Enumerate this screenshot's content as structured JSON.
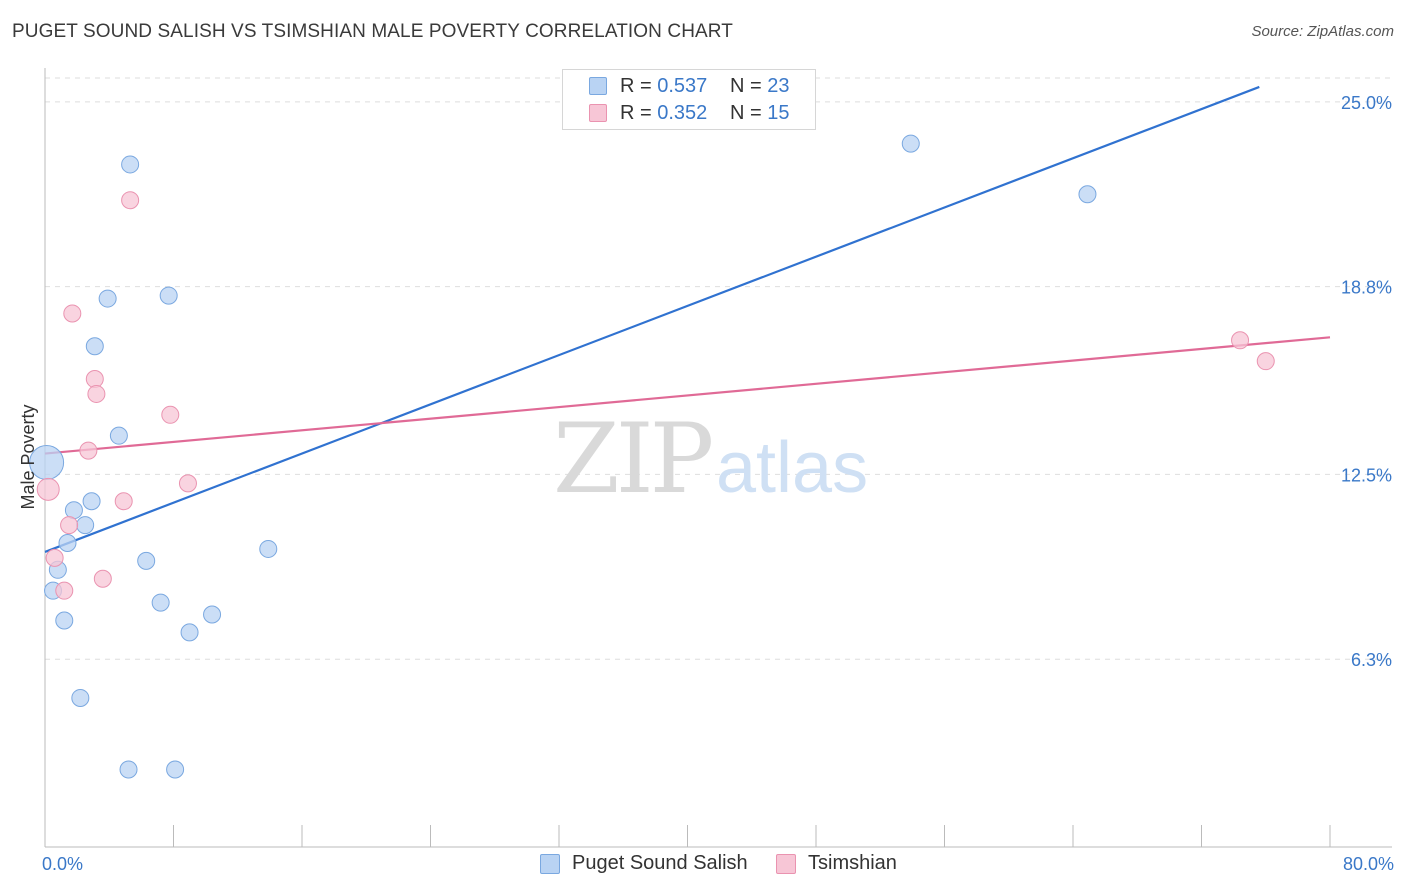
{
  "title": "PUGET SOUND SALISH VS TSIMSHIAN MALE POVERTY CORRELATION CHART",
  "source": "Source: ZipAtlas.com",
  "watermark": {
    "zip": "ZIP",
    "atlas": "atlas"
  },
  "legend_top": {
    "rows": [
      {
        "r_label": "R = ",
        "r_value": "0.537",
        "n_label": "N = ",
        "n_value": "23"
      },
      {
        "r_label": "R = ",
        "r_value": "0.352",
        "n_label": "N = ",
        "n_value": "15"
      }
    ]
  },
  "colors": {
    "blue_fill": "#b9d3f3",
    "blue_stroke": "#7aa8e0",
    "blue_line": "#3072d0",
    "pink_fill": "#f7c6d6",
    "pink_stroke": "#ea93b0",
    "pink_line": "#e06a96",
    "accent_text": "#3a78c8"
  },
  "chart_data": {
    "type": "scatter",
    "title": "PUGET SOUND SALISH VS TSIMSHIAN MALE POVERTY CORRELATION CHART",
    "xlabel": "",
    "ylabel": "Male Poverty",
    "xlim": [
      0,
      80
    ],
    "ylim": [
      0,
      25.8
    ],
    "x_tick_labels": [
      "0.0%",
      "80.0%"
    ],
    "y_ticks": [
      6.3,
      12.5,
      18.8,
      25.0
    ],
    "y_tick_labels": [
      "6.3%",
      "12.5%",
      "18.8%",
      "25.0%"
    ],
    "grid": "horizontal dashed",
    "legend_position": "bottom",
    "series": [
      {
        "name": "Puget Sound Salish",
        "r": 0.537,
        "n": 23,
        "points": [
          [
            0.1,
            12.9
          ],
          [
            0.5,
            8.6
          ],
          [
            0.8,
            9.3
          ],
          [
            1.2,
            7.6
          ],
          [
            1.4,
            10.2
          ],
          [
            1.8,
            11.3
          ],
          [
            2.2,
            5.0
          ],
          [
            2.5,
            10.8
          ],
          [
            2.9,
            11.6
          ],
          [
            3.1,
            16.8
          ],
          [
            3.9,
            18.4
          ],
          [
            4.6,
            13.8
          ],
          [
            5.3,
            22.9
          ],
          [
            5.2,
            2.6
          ],
          [
            6.3,
            9.6
          ],
          [
            7.2,
            8.2
          ],
          [
            7.7,
            18.5
          ],
          [
            8.1,
            2.6
          ],
          [
            9.0,
            7.2
          ],
          [
            10.4,
            7.8
          ],
          [
            13.9,
            10.0
          ],
          [
            53.9,
            23.6
          ],
          [
            64.9,
            21.9
          ]
        ],
        "trend": {
          "x": [
            0,
            75.6
          ],
          "y": [
            9.9,
            25.5
          ]
        }
      },
      {
        "name": "Tsimshian",
        "r": 0.352,
        "n": 15,
        "points": [
          [
            0.2,
            12.0
          ],
          [
            0.6,
            9.7
          ],
          [
            1.2,
            8.6
          ],
          [
            1.5,
            10.8
          ],
          [
            1.7,
            17.9
          ],
          [
            2.7,
            13.3
          ],
          [
            3.1,
            15.7
          ],
          [
            3.2,
            15.2
          ],
          [
            3.6,
            9.0
          ],
          [
            4.9,
            11.6
          ],
          [
            5.3,
            21.7
          ],
          [
            7.8,
            14.5
          ],
          [
            8.9,
            12.2
          ],
          [
            74.4,
            17.0
          ],
          [
            76.0,
            16.3
          ]
        ],
        "trend": {
          "x": [
            0,
            80
          ],
          "y": [
            13.2,
            17.1
          ]
        }
      }
    ]
  },
  "legend_bottom": [
    {
      "label": "Puget Sound Salish"
    },
    {
      "label": "Tsimshian"
    }
  ]
}
